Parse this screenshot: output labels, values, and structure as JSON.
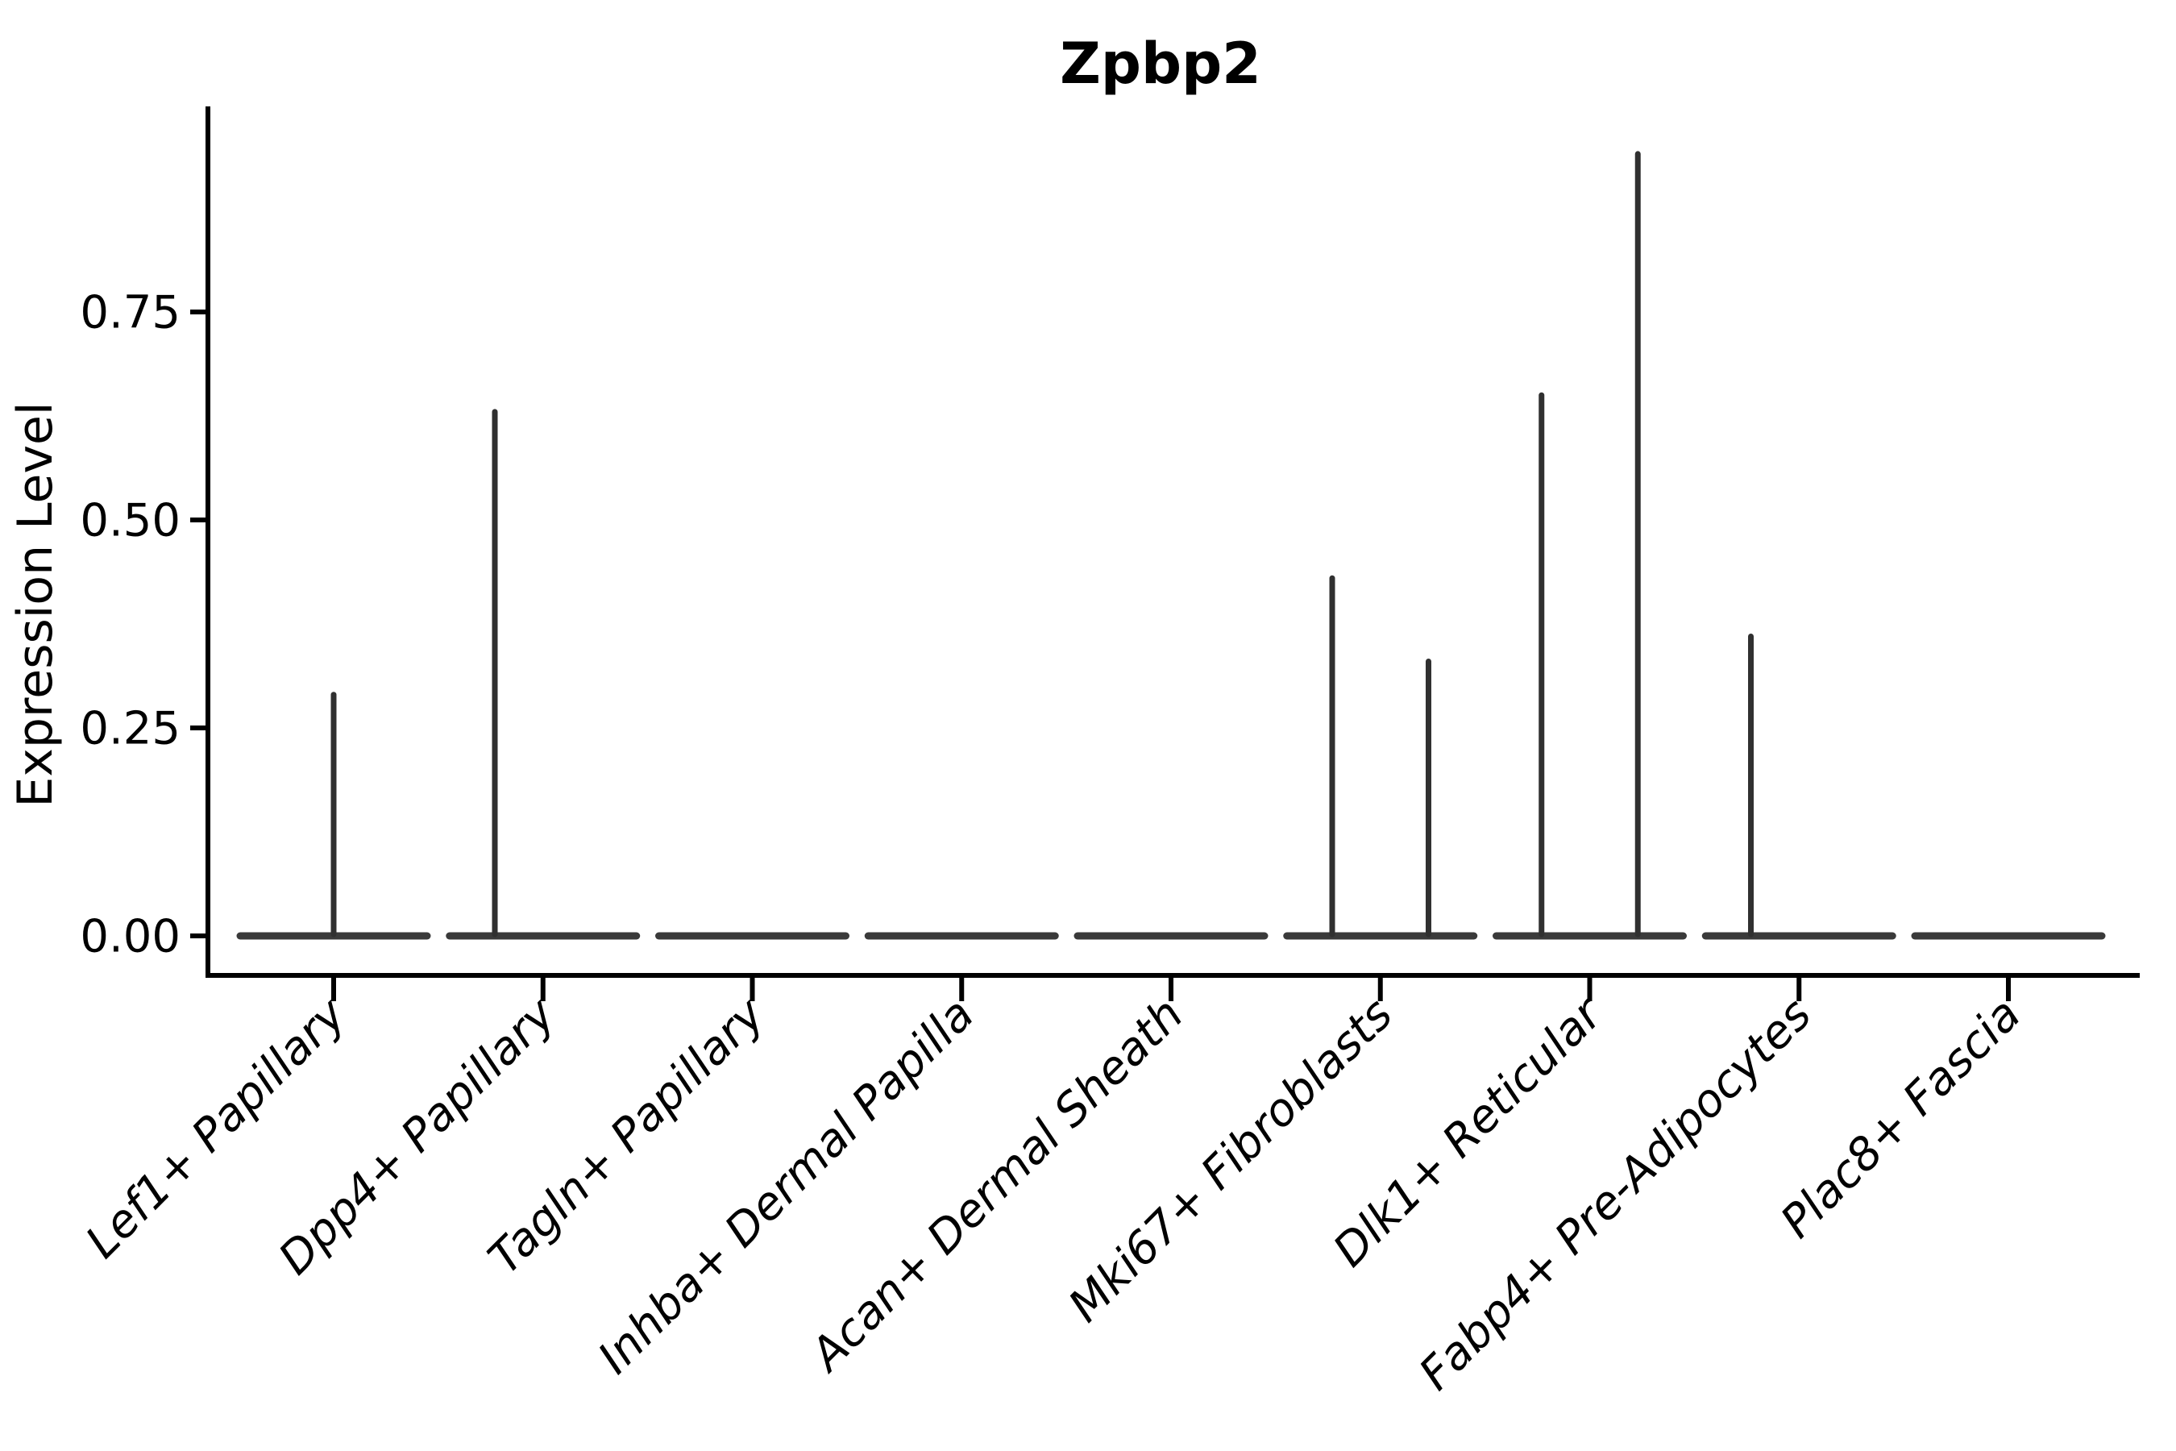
{
  "title": "Zpbp2",
  "axes": {
    "ylabel": "Expression Level",
    "ytick_labels": [
      "0.00",
      "0.25",
      "0.50",
      "0.75"
    ]
  },
  "style": {
    "background": "#ffffff",
    "axis_color": "#000000",
    "text_color": "#000000",
    "violin_body_color": "#3a3a3a",
    "spike_color": "#303030"
  },
  "chart_data": {
    "type": "violin",
    "title": "Zpbp2",
    "xlabel": "",
    "ylabel": "Expression Level",
    "grid": false,
    "legend": null,
    "ylim": [
      -0.05,
      0.99
    ],
    "yticks": [
      0.0,
      0.25,
      0.5,
      0.75
    ],
    "categories": [
      "Lef1+ Papillary",
      "Dpp4+ Papillary",
      "Tagln+ Papillary",
      "Inhba+ Dermal Papilla",
      "Acan+ Dermal Sheath",
      "Mki67+ Fibroblasts",
      "Dlk1+ Reticular",
      "Fabp4+ Pre-Adipocytes",
      "Plac8+ Fascia"
    ],
    "series": [
      {
        "name": "Lef1+ Papillary",
        "baseline_value": 0,
        "spikes": [
          {
            "value": 0.29,
            "offset": 0
          }
        ]
      },
      {
        "name": "Dpp4+ Papillary",
        "baseline_value": 0,
        "spikes": [
          {
            "value": 0.63,
            "offset": -0.23
          }
        ]
      },
      {
        "name": "Tagln+ Papillary",
        "baseline_value": 0,
        "spikes": []
      },
      {
        "name": "Inhba+ Dermal Papilla",
        "baseline_value": 0,
        "spikes": []
      },
      {
        "name": "Acan+ Dermal Sheath",
        "baseline_value": 0,
        "spikes": []
      },
      {
        "name": "Mki67+ Fibroblasts",
        "baseline_value": 0,
        "spikes": [
          {
            "value": 0.43,
            "offset": -0.23
          },
          {
            "value": 0.33,
            "offset": 0.23
          }
        ]
      },
      {
        "name": "Dlk1+ Reticular",
        "baseline_value": 0,
        "spikes": [
          {
            "value": 0.65,
            "offset": -0.23
          },
          {
            "value": 0.94,
            "offset": 0.23
          }
        ]
      },
      {
        "name": "Fabp4+ Pre-Adipocytes",
        "baseline_value": 0,
        "spikes": [
          {
            "value": 0.36,
            "offset": -0.23
          }
        ]
      },
      {
        "name": "Plac8+ Fascia",
        "baseline_value": 0,
        "spikes": []
      }
    ]
  }
}
